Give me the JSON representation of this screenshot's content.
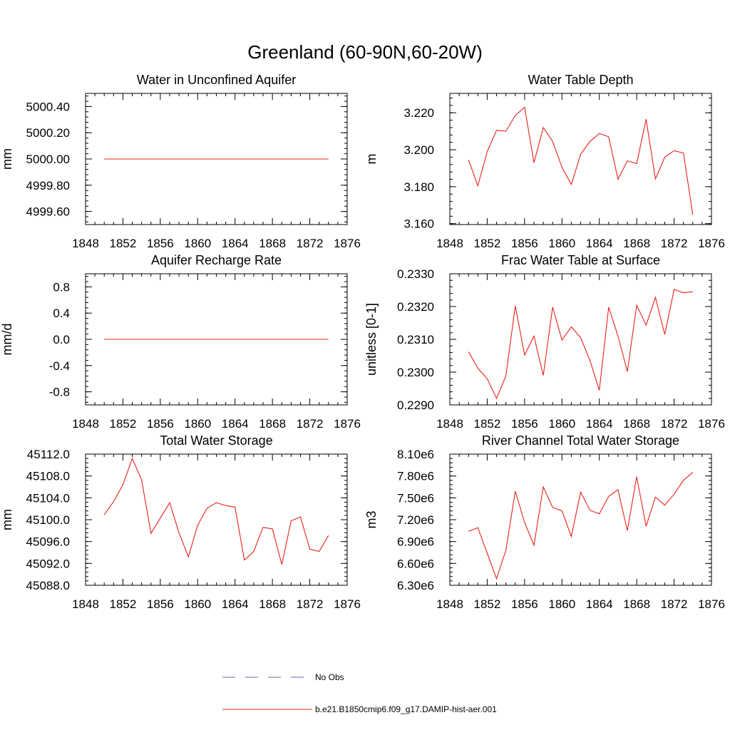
{
  "figure": {
    "title": "Greenland (60-90N,60-20W)"
  },
  "colors": {
    "series": "#e8201a",
    "no_obs": "#5a6fa8",
    "axis": "#000000"
  },
  "legend": {
    "entries": [
      {
        "label": "No Obs",
        "style": "dashed",
        "color": "#5a6fa8"
      },
      {
        "label": "b.e21.B1850cmip6.f09_g17.DAMIP-hist-aer.001",
        "style": "solid",
        "color": "#e8201a"
      }
    ]
  },
  "chart_data": [
    {
      "type": "line",
      "title": "Water in Unconfined Aquifer",
      "ylabel": "mm",
      "xlim": [
        1848,
        1876
      ],
      "ylim": [
        4999.5,
        5000.5
      ],
      "xticks": [
        "1848",
        "1852",
        "1856",
        "1860",
        "1864",
        "1868",
        "1872",
        "1876"
      ],
      "yticks": [
        "4999.60",
        "4999.80",
        "5000.00",
        "5000.20",
        "5000.40"
      ],
      "x": [
        1850,
        1851,
        1852,
        1853,
        1854,
        1855,
        1856,
        1857,
        1858,
        1859,
        1860,
        1861,
        1862,
        1863,
        1864,
        1865,
        1866,
        1867,
        1868,
        1869,
        1870,
        1871,
        1872,
        1873,
        1874
      ],
      "y": [
        5000.0,
        5000.0,
        5000.0,
        5000.0,
        5000.0,
        5000.0,
        5000.0,
        5000.0,
        5000.0,
        5000.0,
        5000.0,
        5000.0,
        5000.0,
        5000.0,
        5000.0,
        5000.0,
        5000.0,
        5000.0,
        5000.0,
        5000.0,
        5000.0,
        5000.0,
        5000.0,
        5000.0,
        5000.0
      ]
    },
    {
      "type": "line",
      "title": "Water Table Depth",
      "ylabel": "m",
      "xlim": [
        1848,
        1876
      ],
      "ylim": [
        3.1595,
        3.2305
      ],
      "xticks": [
        "1848",
        "1852",
        "1856",
        "1860",
        "1864",
        "1868",
        "1872",
        "1876"
      ],
      "yticks": [
        "3.160",
        "3.180",
        "3.200",
        "3.220"
      ],
      "x": [
        1850,
        1851,
        1852,
        1853,
        1854,
        1855,
        1856,
        1857,
        1858,
        1859,
        1860,
        1861,
        1862,
        1863,
        1864,
        1865,
        1866,
        1867,
        1868,
        1869,
        1870,
        1871,
        1872,
        1873,
        1874
      ],
      "y": [
        3.1945,
        3.1805,
        3.199,
        3.2105,
        3.21,
        3.2185,
        3.223,
        3.193,
        3.212,
        3.2045,
        3.1905,
        3.1812,
        3.1975,
        3.2045,
        3.2088,
        3.207,
        3.184,
        3.194,
        3.1925,
        3.2165,
        3.1842,
        3.196,
        3.1995,
        3.1982,
        3.1648
      ]
    },
    {
      "type": "line",
      "title": "Aquifer Recharge Rate",
      "ylabel": "mm/d",
      "xlim": [
        1848,
        1876
      ],
      "ylim": [
        -1.0,
        1.0
      ],
      "xticks": [
        "1848",
        "1852",
        "1856",
        "1860",
        "1864",
        "1868",
        "1872",
        "1876"
      ],
      "yticks": [
        "-0.8",
        "-0.4",
        "0.0",
        "0.4",
        "0.8"
      ],
      "x": [
        1850,
        1851,
        1852,
        1853,
        1854,
        1855,
        1856,
        1857,
        1858,
        1859,
        1860,
        1861,
        1862,
        1863,
        1864,
        1865,
        1866,
        1867,
        1868,
        1869,
        1870,
        1871,
        1872,
        1873,
        1874
      ],
      "y": [
        0,
        0,
        0,
        0,
        0,
        0,
        0,
        0,
        0,
        0,
        0,
        0,
        0,
        0,
        0,
        0,
        0,
        0,
        0,
        0,
        0,
        0,
        0,
        0,
        0
      ]
    },
    {
      "type": "line",
      "title": "Frac Water Table at Surface",
      "ylabel": "unitless [0-1]",
      "xlim": [
        1848,
        1876
      ],
      "ylim": [
        0.229,
        0.233
      ],
      "xticks": [
        "1848",
        "1852",
        "1856",
        "1860",
        "1864",
        "1868",
        "1872",
        "1876"
      ],
      "yticks": [
        "0.2290",
        "0.2300",
        "0.2310",
        "0.2320",
        "0.2330"
      ],
      "x": [
        1850,
        1851,
        1852,
        1853,
        1854,
        1855,
        1856,
        1857,
        1858,
        1859,
        1860,
        1861,
        1862,
        1863,
        1864,
        1865,
        1866,
        1867,
        1868,
        1869,
        1870,
        1871,
        1872,
        1873,
        1874
      ],
      "y": [
        0.23062,
        0.23012,
        0.2298,
        0.2292,
        0.22988,
        0.23202,
        0.23052,
        0.2311,
        0.2299,
        0.23198,
        0.23098,
        0.23138,
        0.23105,
        0.23035,
        0.22945,
        0.23198,
        0.2311,
        0.23002,
        0.23204,
        0.23143,
        0.23228,
        0.23115,
        0.23252,
        0.23242,
        0.23245
      ]
    },
    {
      "type": "line",
      "title": "Total Water Storage",
      "ylabel": "mm",
      "xlim": [
        1848,
        1876
      ],
      "ylim": [
        45088.0,
        45112.0
      ],
      "xticks": [
        "1848",
        "1852",
        "1856",
        "1860",
        "1864",
        "1868",
        "1872",
        "1876"
      ],
      "yticks": [
        "45088.0",
        "45092.0",
        "45096.0",
        "45100.0",
        "45104.0",
        "45108.0",
        "45112.0"
      ],
      "x": [
        1850,
        1851,
        1852,
        1853,
        1854,
        1855,
        1856,
        1857,
        1858,
        1859,
        1860,
        1861,
        1862,
        1863,
        1864,
        1865,
        1866,
        1867,
        1868,
        1869,
        1870,
        1871,
        1872,
        1873,
        1874
      ],
      "y": [
        45100.9,
        45103.3,
        45106.4,
        45111.2,
        45107.3,
        45097.5,
        45100.3,
        45103.1,
        45097.6,
        45093.2,
        45099.0,
        45102.1,
        45103.1,
        45102.6,
        45102.3,
        45092.6,
        45094.2,
        45098.6,
        45098.3,
        45091.8,
        45099.8,
        45100.5,
        45094.6,
        45094.2,
        45097.1
      ]
    },
    {
      "type": "line",
      "title": "River Channel Total Water Storage",
      "ylabel": "m3",
      "xlim": [
        1848,
        1876
      ],
      "ylim": [
        6300000,
        8100000
      ],
      "xticks": [
        "1848",
        "1852",
        "1856",
        "1860",
        "1864",
        "1868",
        "1872",
        "1876"
      ],
      "yticks": [
        "6.30e6",
        "6.60e6",
        "6.90e6",
        "7.20e6",
        "7.50e6",
        "7.80e6",
        "8.10e6"
      ],
      "x": [
        1850,
        1851,
        1852,
        1853,
        1854,
        1855,
        1856,
        1857,
        1858,
        1859,
        1860,
        1861,
        1862,
        1863,
        1864,
        1865,
        1866,
        1867,
        1868,
        1869,
        1870,
        1871,
        1872,
        1873,
        1874
      ],
      "y": [
        7040000,
        7090000,
        6740000,
        6390000,
        6780000,
        7590000,
        7160000,
        6850000,
        7650000,
        7370000,
        7320000,
        6970000,
        7580000,
        7330000,
        7280000,
        7520000,
        7610000,
        7050000,
        7790000,
        7110000,
        7510000,
        7400000,
        7550000,
        7740000,
        7850000
      ]
    }
  ]
}
